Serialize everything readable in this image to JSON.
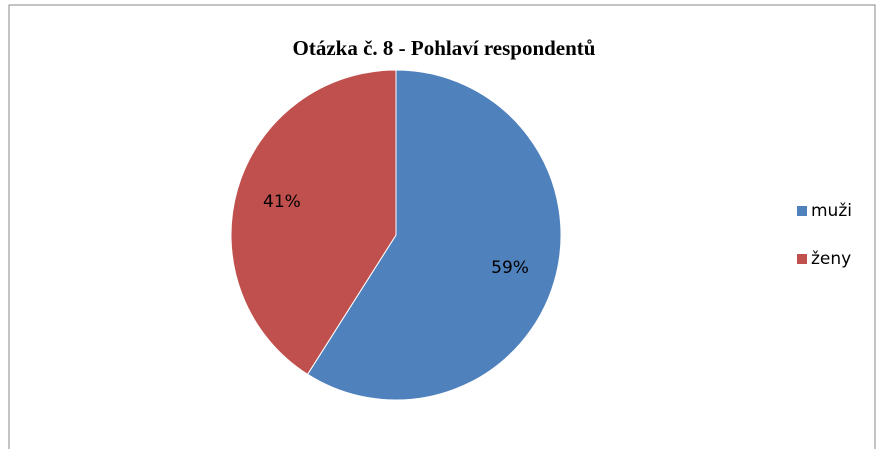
{
  "chart_data": {
    "type": "pie",
    "title": "Otázka č. 8 - Pohlaví respondentů",
    "categories": [
      "muži",
      "ženy"
    ],
    "values": [
      59,
      41
    ],
    "value_labels": [
      "59%",
      "41%"
    ],
    "colors": [
      "#4f81bd",
      "#c0504d"
    ],
    "legend": "right"
  }
}
